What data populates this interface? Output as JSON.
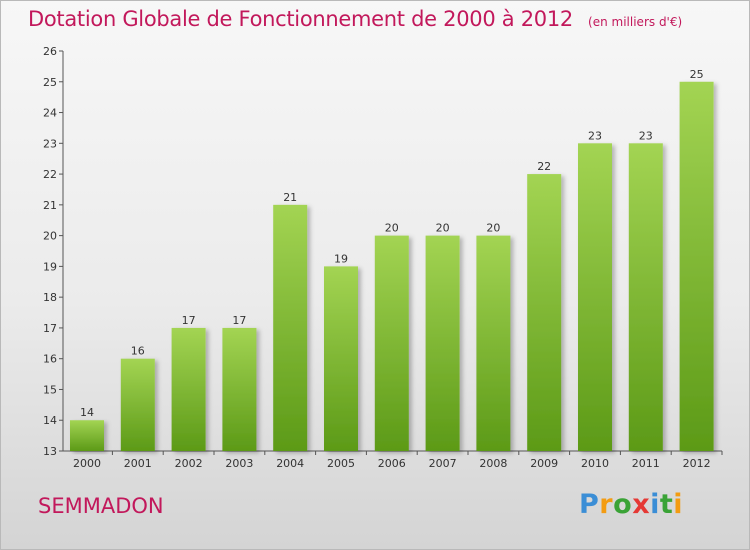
{
  "chart_data": {
    "type": "bar",
    "title": "Dotation Globale de Fonctionnement de 2000 à 2012",
    "subtitle": "(en milliers d'€)",
    "categories": [
      "2000",
      "2001",
      "2002",
      "2003",
      "2004",
      "2005",
      "2006",
      "2007",
      "2008",
      "2009",
      "2010",
      "2011",
      "2012"
    ],
    "values": [
      14,
      16,
      17,
      17,
      21,
      19,
      20,
      20,
      20,
      22,
      23,
      23,
      25
    ],
    "ylim": [
      13,
      26
    ],
    "yticks": [
      13,
      14,
      15,
      16,
      17,
      18,
      19,
      20,
      21,
      22,
      23,
      24,
      25,
      26
    ],
    "xlabel": "",
    "ylabel": "",
    "grid": false,
    "legend": "none",
    "colors": {
      "bar_top": "#a3d453",
      "bar_bottom": "#5c9a17",
      "title": "#c2185b"
    }
  },
  "commune": "SEMMADON",
  "logo": {
    "letters": [
      "P",
      "r",
      "o",
      "x",
      "i",
      "t",
      "i"
    ],
    "colors": [
      "#3b8ed6",
      "#f39c12",
      "#3aa336",
      "#e53935",
      "#3b8ed6",
      "#3aa336",
      "#f39c12"
    ]
  }
}
